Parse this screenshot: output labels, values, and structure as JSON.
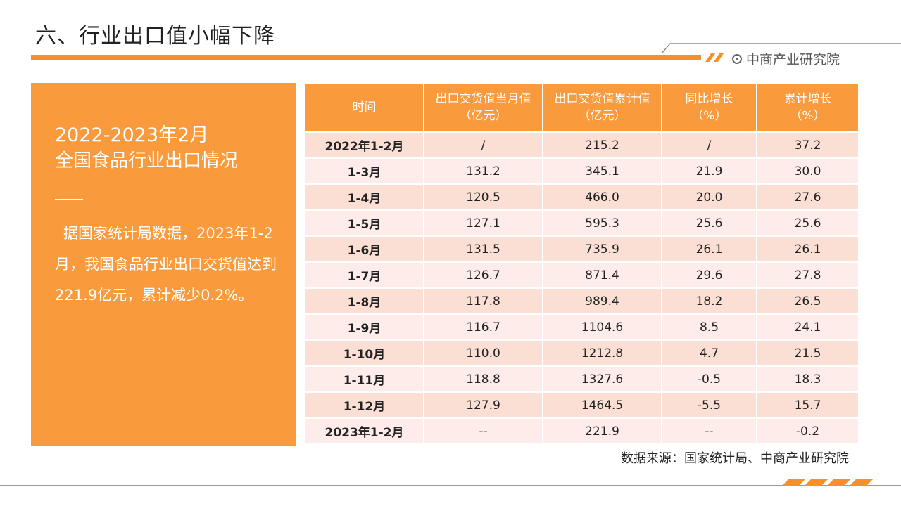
{
  "title": "六、行业出口值小幅下降",
  "brand": {
    "name": "中商产业研究院",
    "icon": "target-icon"
  },
  "colors": {
    "accent": "#f7902b",
    "panel": "#f99a3c",
    "row_a": "#fbdfd4",
    "row_b": "#fdecea"
  },
  "panel": {
    "heading_line1": "2022-2023年2月",
    "heading_line2": "全国食品行业出口情况",
    "body": "据国家统计局数据，2023年1-2月，我国食品行业出口交货值达到221.9亿元，累计减少0.2%。"
  },
  "table": {
    "headers": [
      {
        "line1": "时间",
        "line2": ""
      },
      {
        "line1": "出口交货值当月值",
        "line2": "（亿元）"
      },
      {
        "line1": "出口交货值累计值",
        "line2": "（亿元）"
      },
      {
        "line1": "同比增长",
        "line2": "（%）"
      },
      {
        "line1": "累计增长",
        "line2": "（%）"
      }
    ],
    "rows": [
      [
        "2022年1-2月",
        "/",
        "215.2",
        "/",
        "37.2"
      ],
      [
        "1-3月",
        "131.2",
        "345.1",
        "21.9",
        "30.0"
      ],
      [
        "1-4月",
        "120.5",
        "466.0",
        "20.0",
        "27.6"
      ],
      [
        "1-5月",
        "127.1",
        "595.3",
        "25.6",
        "25.6"
      ],
      [
        "1-6月",
        "131.5",
        "735.9",
        "26.1",
        "26.1"
      ],
      [
        "1-7月",
        "126.7",
        "871.4",
        "29.6",
        "27.8"
      ],
      [
        "1-8月",
        "117.8",
        "989.4",
        "18.2",
        "26.5"
      ],
      [
        "1-9月",
        "116.7",
        "1104.6",
        "8.5",
        "24.1"
      ],
      [
        "1-10月",
        "110.0",
        "1212.8",
        "4.7",
        "21.5"
      ],
      [
        "1-11月",
        "118.8",
        "1327.6",
        "-0.5",
        "18.3"
      ],
      [
        "1-12月",
        "127.9",
        "1464.5",
        "-5.5",
        "15.7"
      ],
      [
        "2023年1-2月",
        "--",
        "221.9",
        "--",
        "-0.2"
      ]
    ]
  },
  "source": "数据来源：国家统计局、中商产业研究院"
}
